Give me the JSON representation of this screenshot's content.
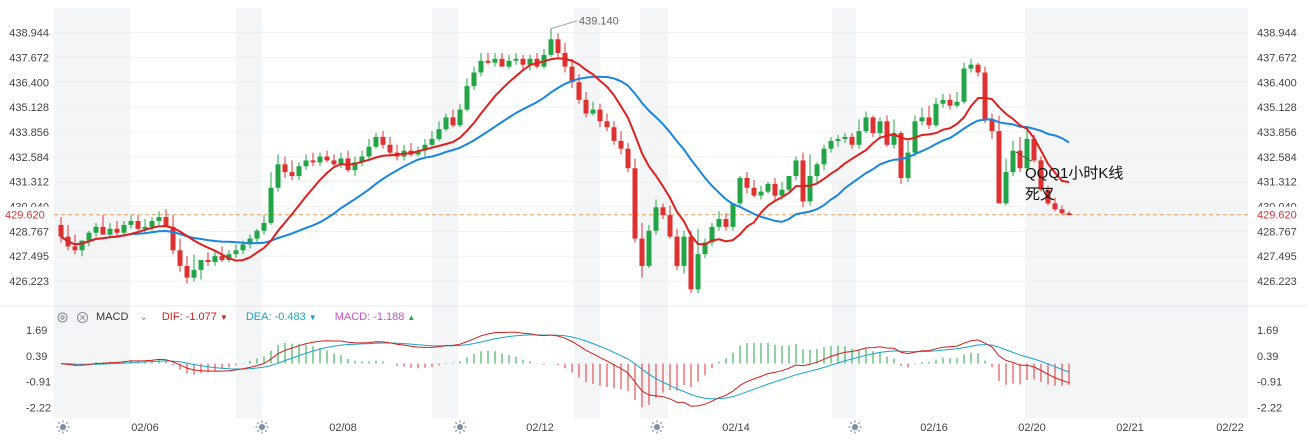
{
  "chart_data": {
    "type": "candlestick",
    "x_ticks": [
      "02/06",
      "02/08",
      "02/12",
      "02/14",
      "02/16",
      "02/20",
      "02/21",
      "02/22"
    ],
    "price_axis": {
      "ylim": [
        425.0,
        440.2
      ],
      "ticks": [
        "438.944",
        "437.672",
        "436.400",
        "435.128",
        "433.856",
        "432.584",
        "431.312",
        "430.040",
        "428.767",
        "427.495",
        "426.223"
      ]
    },
    "last_price": "429.620",
    "high_label": "439.140",
    "ma_fast_color": "#e02020",
    "ma_slow_color": "#1a86e0",
    "up_color": "#22a546",
    "down_color": "#e03131",
    "candles": {
      "o": [
        429.1,
        428.5,
        428.0,
        427.8,
        428.3,
        428.7,
        429.0,
        428.6,
        428.9,
        428.7,
        429.1,
        429.3,
        428.9,
        429.0,
        429.3,
        429.5,
        429.0,
        427.8,
        427.0,
        426.4,
        426.8,
        427.3,
        427.2,
        427.5,
        427.3,
        427.6,
        427.8,
        428.1,
        428.4,
        428.8,
        429.2,
        431.0,
        432.2,
        431.8,
        431.6,
        432.1,
        432.4,
        432.3,
        432.6,
        432.4,
        432.2,
        432.5,
        431.9,
        432.3,
        432.6,
        433.1,
        433.6,
        433.2,
        432.8,
        432.6,
        432.9,
        432.7,
        432.9,
        433.2,
        433.5,
        434.0,
        434.6,
        434.2,
        435.0,
        436.2,
        436.9,
        437.5,
        437.4,
        437.6,
        437.2,
        437.5,
        437.6,
        437.3,
        437.6,
        437.2,
        437.8,
        438.6,
        437.9,
        437.2,
        436.4,
        435.5,
        434.8,
        435.0,
        434.4,
        434.1,
        433.4,
        433.0,
        432.0,
        428.4,
        427.0,
        428.8,
        430.0,
        429.6,
        428.5,
        427.0,
        428.5,
        425.8,
        427.6,
        428.2,
        429.0,
        429.4,
        429.0,
        430.2,
        431.5,
        431.0,
        430.6,
        430.8,
        431.2,
        430.6,
        430.9,
        431.6,
        432.4,
        430.3,
        431.6,
        432.2,
        433.0,
        433.4,
        433.5,
        433.6,
        433.2,
        433.9,
        434.6,
        433.8,
        434.4,
        433.2,
        433.8,
        431.5,
        432.8,
        434.4,
        434.6,
        434.2,
        435.3,
        435.5,
        435.2,
        435.4,
        437.1,
        437.3,
        436.9,
        434.5,
        433.9,
        430.2,
        431.8,
        432.9,
        432.0,
        433.5,
        432.4,
        430.9,
        430.2,
        429.9,
        429.7
      ],
      "h": [
        429.5,
        429.1,
        428.6,
        428.3,
        428.8,
        429.2,
        429.6,
        429.2,
        429.3,
        429.3,
        429.6,
        429.6,
        429.4,
        429.5,
        429.8,
        429.9,
        429.6,
        428.4,
        427.5,
        427.6,
        427.3,
        427.7,
        427.8,
        428.0,
        427.8,
        428.1,
        428.3,
        428.6,
        428.9,
        429.6,
        431.8,
        432.7,
        432.6,
        432.4,
        432.3,
        432.7,
        432.8,
        432.8,
        432.9,
        432.7,
        432.8,
        432.9,
        432.6,
        432.9,
        433.5,
        433.8,
        433.9,
        433.6,
        433.2,
        433.2,
        433.3,
        433.1,
        433.5,
        433.9,
        434.4,
        434.8,
        435.0,
        435.3,
        436.6,
        437.2,
        437.9,
        437.9,
        437.9,
        437.9,
        437.8,
        437.9,
        437.8,
        437.8,
        437.9,
        438.1,
        439.14,
        438.9,
        438.4,
        437.6,
        436.8,
        435.9,
        435.4,
        435.3,
        434.8,
        434.4,
        433.9,
        433.3,
        432.5,
        429.2,
        429.1,
        430.4,
        430.2,
        430.1,
        428.9,
        428.8,
        428.8,
        428.9,
        428.4,
        429.2,
        429.8,
        429.7,
        429.9,
        431.6,
        431.8,
        431.4,
        431.1,
        431.3,
        431.5,
        431.3,
        431.6,
        432.6,
        432.8,
        432.7,
        432.3,
        433.2,
        433.6,
        433.7,
        433.8,
        433.8,
        434.5,
        434.9,
        434.7,
        434.6,
        434.7,
        434.5,
        433.9,
        433.4,
        434.7,
        435.1,
        435.2,
        435.6,
        435.8,
        435.8,
        435.9,
        437.4,
        437.6,
        437.4,
        437.2,
        434.8,
        434.7,
        432.5,
        433.4,
        433.6,
        434.1,
        433.7,
        432.6,
        431.1,
        430.5,
        430.1,
        429.8
      ],
      "l": [
        428.2,
        427.8,
        427.6,
        427.5,
        428.0,
        428.5,
        428.8,
        428.4,
        428.5,
        428.6,
        428.9,
        428.8,
        428.7,
        428.8,
        429.1,
        429.0,
        427.6,
        426.7,
        426.1,
        426.2,
        426.3,
        427.0,
        427.0,
        427.2,
        427.2,
        427.4,
        427.6,
        427.9,
        428.2,
        428.6,
        429.1,
        430.8,
        431.5,
        431.4,
        431.4,
        431.9,
        432.1,
        432.1,
        432.3,
        432.1,
        432.0,
        431.8,
        431.6,
        432.1,
        432.4,
        433.0,
        433.0,
        432.6,
        432.4,
        432.4,
        432.6,
        432.6,
        432.6,
        433.1,
        433.4,
        433.9,
        434.1,
        434.1,
        434.9,
        436.0,
        436.7,
        437.3,
        437.2,
        437.2,
        437.1,
        437.3,
        437.0,
        437.0,
        437.1,
        437.1,
        437.7,
        437.7,
        436.9,
        436.1,
        435.3,
        434.6,
        434.7,
        434.1,
        433.9,
        433.2,
        432.7,
        431.8,
        428.2,
        426.4,
        426.9,
        428.6,
        429.4,
        428.4,
        426.8,
        426.6,
        425.6,
        425.6,
        427.4,
        428.0,
        428.8,
        428.8,
        428.8,
        430.0,
        430.7,
        430.5,
        430.4,
        430.7,
        430.4,
        430.4,
        430.8,
        431.4,
        430.0,
        430.1,
        431.2,
        431.9,
        432.8,
        433.1,
        433.3,
        433.0,
        433.0,
        433.8,
        433.6,
        433.6,
        433.1,
        433.0,
        431.2,
        431.3,
        432.6,
        434.2,
        434.0,
        434.1,
        435.1,
        435.0,
        435.1,
        435.3,
        436.9,
        436.7,
        434.3,
        433.5,
        430.3,
        430.1,
        431.6,
        431.8,
        431.8,
        432.3,
        430.8,
        430.1,
        429.8,
        429.6,
        429.6
      ],
      "c": [
        428.5,
        428.0,
        427.8,
        428.3,
        428.7,
        429.0,
        428.6,
        428.9,
        428.7,
        429.1,
        429.3,
        428.9,
        429.0,
        429.3,
        429.5,
        429.0,
        427.8,
        427.0,
        426.4,
        426.8,
        427.3,
        427.2,
        427.5,
        427.3,
        427.6,
        427.8,
        428.1,
        428.4,
        428.8,
        429.2,
        431.0,
        432.2,
        431.8,
        431.6,
        432.1,
        432.4,
        432.3,
        432.6,
        432.4,
        432.2,
        432.5,
        431.9,
        432.3,
        432.6,
        433.1,
        433.6,
        433.2,
        432.8,
        432.6,
        432.9,
        432.7,
        432.9,
        433.2,
        433.5,
        434.0,
        434.6,
        434.2,
        435.0,
        436.2,
        436.9,
        437.5,
        437.4,
        437.6,
        437.2,
        437.5,
        437.6,
        437.3,
        437.6,
        437.2,
        437.8,
        438.6,
        437.9,
        437.2,
        436.4,
        435.5,
        434.8,
        435.0,
        434.4,
        434.1,
        433.4,
        433.0,
        432.0,
        428.4,
        427.0,
        428.8,
        430.0,
        429.6,
        428.5,
        427.0,
        428.5,
        425.8,
        427.6,
        428.2,
        429.0,
        429.4,
        429.0,
        430.2,
        431.5,
        431.0,
        430.6,
        430.8,
        431.2,
        430.6,
        430.9,
        431.6,
        432.4,
        430.3,
        431.6,
        432.2,
        433.0,
        433.4,
        433.5,
        433.6,
        433.2,
        433.9,
        434.6,
        433.8,
        434.4,
        433.2,
        433.8,
        431.5,
        432.8,
        434.4,
        434.6,
        434.2,
        435.3,
        435.5,
        435.2,
        435.4,
        437.1,
        437.3,
        436.9,
        434.5,
        433.9,
        430.2,
        431.8,
        432.9,
        432.0,
        433.5,
        432.4,
        430.9,
        430.2,
        429.9,
        429.7,
        429.6
      ]
    },
    "indicator": {
      "name": "MACD",
      "dif_label": "DIF:",
      "dif_value": "-1.077",
      "dif_color": "#d02020",
      "dea_label": "DEA:",
      "dea_value": "-0.483",
      "dea_color": "#1aa5c8",
      "macd_label": "MACD:",
      "macd_value": "-1.188",
      "macd_color": "#d050d0",
      "ylim": [
        -2.75,
        1.95
      ],
      "ticks": [
        "1.69",
        "0.39",
        "-0.91",
        "-2.22"
      ]
    },
    "annotation": "QQQ1小时K线\n死叉"
  }
}
